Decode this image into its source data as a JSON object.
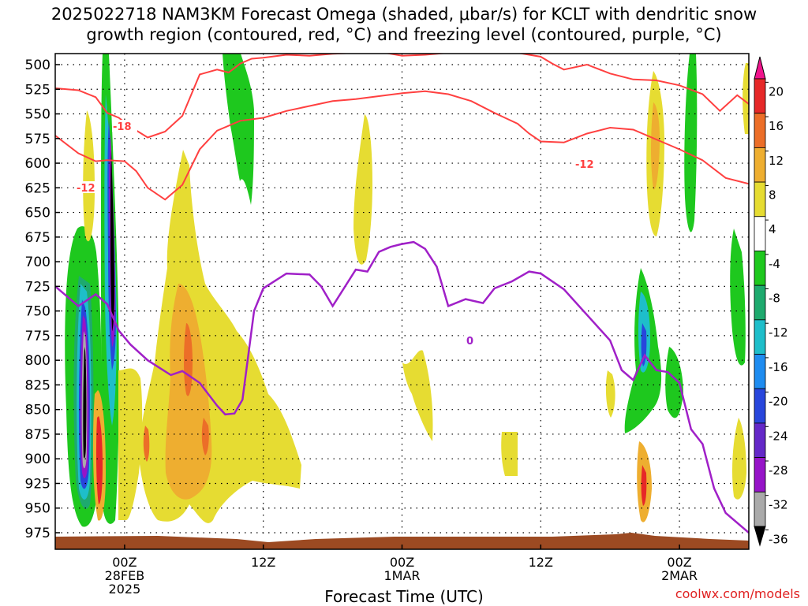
{
  "title": {
    "line1": "2025022718 NAM3KM Forecast Omega (shaded, μbar/s) for KCLT with dendritic snow",
    "line2": "growth region (contoured, red, °C) and freezing level (contoured, purple, °C)"
  },
  "xlabel": "Forecast Time (UTC)",
  "credit": "coolwx.com/models",
  "chart_data": {
    "type": "heatmap",
    "y_axis": {
      "label": "",
      "ticks": [
        500,
        525,
        550,
        575,
        600,
        625,
        650,
        675,
        700,
        725,
        750,
        775,
        800,
        825,
        850,
        875,
        900,
        925,
        950,
        975
      ],
      "range": [
        975,
        500
      ],
      "unit": "hPa",
      "grid": "dotted"
    },
    "x_axis": {
      "range_hours": [
        0,
        60
      ],
      "ticks": [
        {
          "hour": 6,
          "lines": [
            "00Z",
            "28FEB",
            "2025"
          ]
        },
        {
          "hour": 18,
          "lines": [
            "12Z"
          ]
        },
        {
          "hour": 30,
          "lines": [
            "00Z",
            "1MAR"
          ]
        },
        {
          "hour": 42,
          "lines": [
            "12Z"
          ]
        },
        {
          "hour": 54,
          "lines": [
            "00Z",
            "2MAR"
          ]
        }
      ]
    },
    "colorbar": {
      "labels": [
        20,
        16,
        12,
        8,
        4,
        -4,
        -8,
        -12,
        -16,
        -20,
        -24,
        -28,
        -32,
        -36
      ],
      "colors": [
        "#f0148c",
        "#e62828",
        "#ec6e28",
        "#eeae30",
        "#e6dc32",
        "#ffffff",
        "#1ec81e",
        "#1eaa6e",
        "#1ebeca",
        "#1e8cf0",
        "#2846dc",
        "#6428c8",
        "#9614c8",
        "#aaaaaa",
        "#000000"
      ]
    },
    "contour_labels": {
      "dgz_red": [
        "-18",
        "-12",
        "-12"
      ],
      "freezing_purple": [
        "0"
      ]
    },
    "series": [
      {
        "name": "-12",
        "color": "#ff4040",
        "x": [
          0,
          2,
          3.5,
          4.5,
          6,
          7,
          8,
          9.5,
          11,
          12.5,
          14,
          16,
          18,
          20,
          22,
          24,
          26,
          28,
          30,
          32,
          34,
          36,
          38,
          40,
          41,
          42,
          44,
          46,
          48,
          50,
          52,
          54,
          56,
          58,
          60
        ],
        "y": [
          572,
          590,
          598,
          597,
          598,
          608,
          625,
          637,
          622,
          586,
          567,
          557,
          554,
          547,
          542,
          537,
          535,
          532,
          529,
          527,
          530,
          537,
          549,
          560,
          570,
          578,
          579,
          570,
          564,
          566,
          576,
          586,
          597,
          615,
          621
        ]
      },
      {
        "name": "-18",
        "color": "#ff4040",
        "x": [
          0,
          2,
          3.5,
          4.5,
          5.5,
          6.5,
          8,
          9.5,
          11,
          12.5,
          14,
          15,
          16,
          17,
          18,
          20,
          22,
          24,
          26,
          28,
          30,
          32,
          34,
          36,
          38,
          40,
          42,
          43,
          44,
          46,
          48,
          50,
          52,
          54,
          56,
          57.5,
          59,
          60
        ],
        "y": [
          524,
          526,
          533,
          549,
          554,
          563,
          574,
          568,
          552,
          510,
          505,
          508,
          499,
          494,
          493,
          490,
          491,
          489,
          488,
          487,
          491,
          490,
          488,
          487,
          485,
          488,
          492,
          499,
          505,
          500,
          509,
          515,
          516,
          521,
          530,
          547,
          531,
          540
        ]
      },
      {
        "name": "0",
        "color": "#a020c8",
        "x": [
          0,
          2,
          3.5,
          4.5,
          5.5,
          6.5,
          8,
          10,
          11,
          12.5,
          14,
          14.7,
          15.5,
          16.2,
          17.2,
          18,
          20,
          22,
          23,
          24,
          26,
          27,
          28,
          29,
          30,
          31,
          32,
          33,
          34,
          35.5,
          37,
          38,
          39.5,
          41,
          42,
          44,
          46,
          48,
          49,
          50,
          51,
          52,
          53,
          54,
          55,
          56,
          57,
          58,
          60
        ],
        "y": [
          725,
          745,
          733,
          743,
          770,
          784,
          800,
          815,
          811,
          823,
          846,
          855,
          854,
          840,
          750,
          727,
          712,
          713,
          725,
          745,
          708,
          710,
          690,
          685,
          682,
          680,
          687,
          705,
          745,
          738,
          742,
          727,
          720,
          710,
          712,
          728,
          754,
          780,
          810,
          820,
          795,
          810,
          812,
          823,
          870,
          885,
          930,
          955,
          975
        ]
      }
    ]
  }
}
